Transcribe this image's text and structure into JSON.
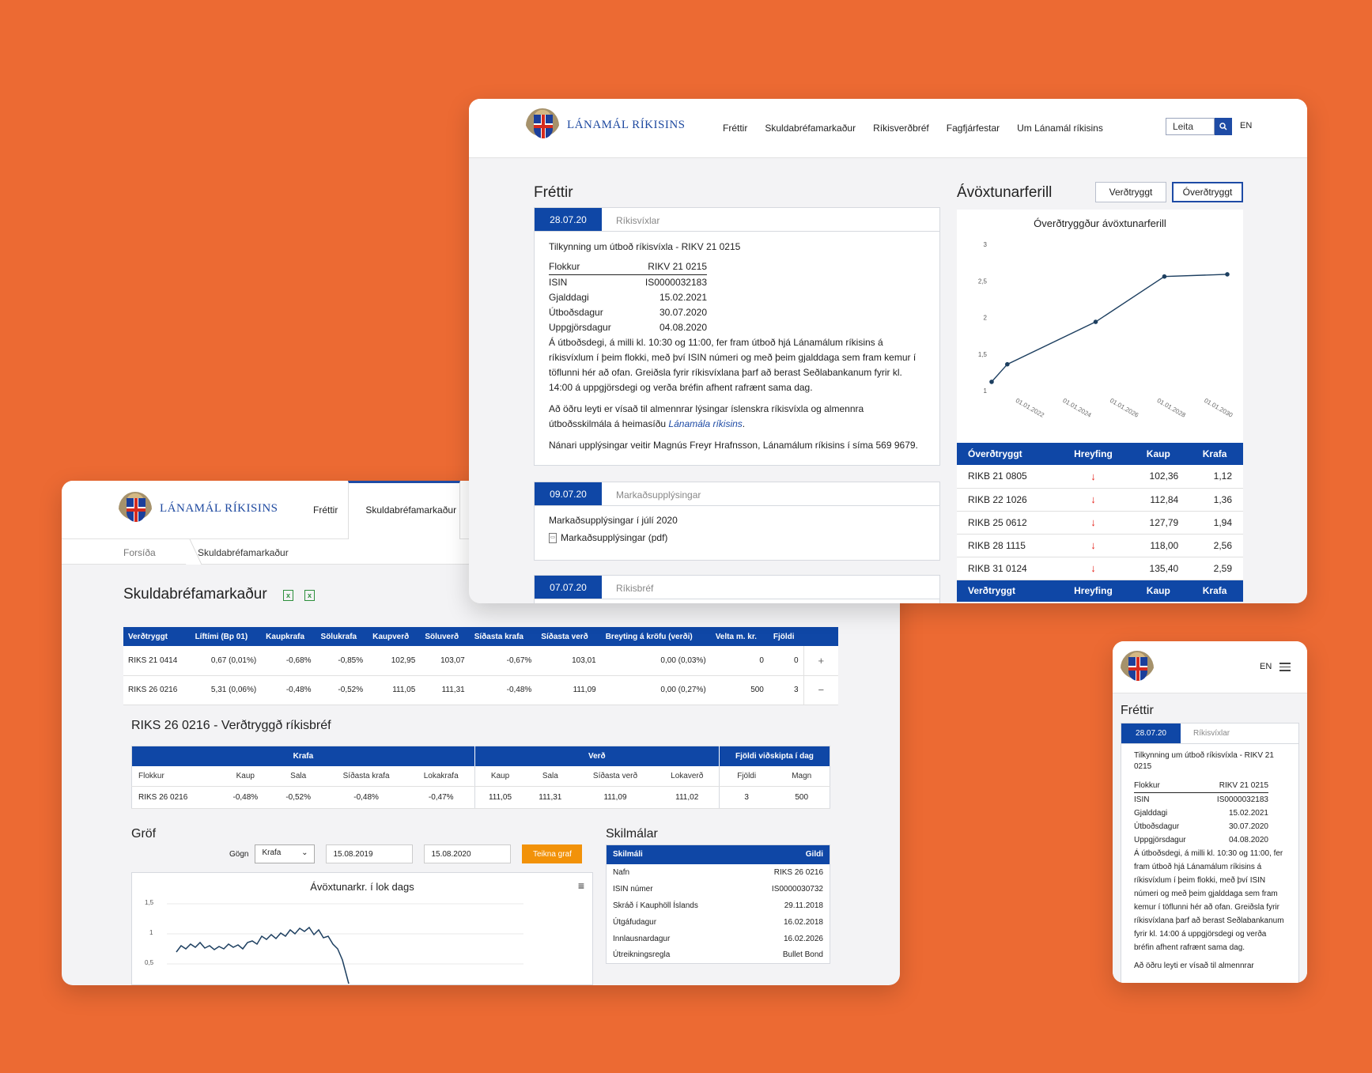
{
  "brand": {
    "name": "LÁNAMÁL RÍKISINS"
  },
  "main_window": {
    "nav": [
      "Fréttir",
      "Skuldabréfamarkaður",
      "Ríkisverðbréf",
      "Fagfjárfestar",
      "Um Lánamál ríkisins"
    ],
    "search_placeholder": "Leita",
    "lang": "EN",
    "news_title": "Fréttir",
    "news": [
      {
        "date": "28.07.20",
        "category": "Ríkisvíxlar",
        "title": "Tilkynning um útboð ríkisvíxla - RIKV 21 0215",
        "table": [
          [
            "Flokkur",
            "RIKV 21 0215"
          ],
          [
            "ISIN",
            "IS0000032183"
          ],
          [
            "Gjalddagi",
            "15.02.2021"
          ],
          [
            "Útboðsdagur",
            "30.07.2020"
          ],
          [
            "Uppgjörsdagur",
            "04.08.2020"
          ]
        ],
        "para1": "Á útboðsdegi, á milli kl. 10:30 og 11:00, fer fram útboð hjá Lánamálum ríkisins á ríkisvíxlum í þeim flokki, með því ISIN númeri og með þeim gjalddaga sem fram kemur í töflunni hér að ofan. Greiðsla fyrir ríkisvíxlana þarf að berast Seðlabankanum fyrir kl. 14:00 á uppgjörsdegi og verða bréfin afhent rafrænt sama dag.",
        "para2_a": "Að öðru leyti er vísað til almennrar lýsingar íslenskra ríkisvíxla og almennra útboðsskilmála á heimasíðu ",
        "para2_link": "Lánamála ríkisins",
        "para2_b": ".",
        "para3": "Nánari upplýsingar veitir Magnús Freyr Hrafnsson, Lánamálum ríkisins í síma 569 9679."
      },
      {
        "date": "09.07.20",
        "category": "Markaðsupplýsingar",
        "title": "Markaðsupplýsingar í júlí 2020",
        "attachment": "Markaðsupplýsingar (pdf)"
      },
      {
        "date": "07.07.20",
        "category": "Ríkisbréf"
      }
    ],
    "curve_title": "Ávöxtunarferill",
    "toggles": [
      "Verðtryggt",
      "Óverðtryggt"
    ],
    "active_toggle": "Óverðtryggt",
    "chart_data": {
      "type": "line",
      "title": "Óverðtryggður ávöxtunarferill",
      "x": [
        "01.01.2021",
        "01.09.2021",
        "01.06.2025",
        "01.05.2028",
        "01.01.2031"
      ],
      "x_ticks": [
        "01.01.2022",
        "01.01.2024",
        "01.01.2026",
        "01.01.2028",
        "01.01.2030"
      ],
      "y_ticks": [
        "1",
        "1,5",
        "2",
        "2,5",
        "3"
      ],
      "ylim": [
        1,
        3
      ],
      "values": [
        1.12,
        1.36,
        1.94,
        2.56,
        2.59
      ]
    },
    "rates_table": {
      "headers": [
        "Óverðtryggt",
        "Hreyfing",
        "Kaup",
        "Krafa"
      ],
      "rows": [
        [
          "RIKB 21 0805",
          "down",
          "102,36",
          "1,12"
        ],
        [
          "RIKB 22 1026",
          "down",
          "112,84",
          "1,36"
        ],
        [
          "RIKB 25 0612",
          "down",
          "127,79",
          "1,94"
        ],
        [
          "RIKB 28 1115",
          "down",
          "118,00",
          "2,56"
        ],
        [
          "RIKB 31 0124",
          "down",
          "135,40",
          "2,59"
        ]
      ],
      "footer_headers": [
        "Verðtryggt",
        "Hreyfing",
        "Kaup",
        "Krafa"
      ]
    }
  },
  "left_window": {
    "nav": [
      "Fréttir",
      "Skuldabréfamarkaður"
    ],
    "breadcrumb": [
      "Forsíða",
      "Skuldabréfamarkaður"
    ],
    "page_title": "Skuldabréfamarkaður",
    "market_table": {
      "headers": [
        "Verðtryggt",
        "Líftími (Bp 01)",
        "Kaupkrafa",
        "Sölukrafa",
        "Kaupverð",
        "Söluverð",
        "Síðasta krafa",
        "Síðasta verð",
        "Breyting á kröfu (verði)",
        "Velta m. kr.",
        "Fjöldi"
      ],
      "rows": [
        [
          "RIKS 21 0414",
          "0,67 (0,01%)",
          "-0,68%",
          "-0,85%",
          "102,95",
          "103,07",
          "-0,67%",
          "103,01",
          "0,00 (0,03%)",
          "0",
          "0",
          "+"
        ],
        [
          "RIKS 26 0216",
          "5,31 (0,06%)",
          "-0,48%",
          "-0,52%",
          "111,05",
          "111,31",
          "-0,48%",
          "111,09",
          "0,00 (0,27%)",
          "500",
          "3",
          "−"
        ]
      ]
    },
    "detail_title": "RIKS 26 0216 - Verðtryggð ríkisbréf",
    "detail_table": {
      "groups": [
        "Krafa",
        "Verð",
        "Fjöldi viðskipta í dag"
      ],
      "subheaders": [
        "Flokkur",
        "Kaup",
        "Sala",
        "Síðasta krafa",
        "Lokakrafa",
        "Kaup",
        "Sala",
        "Síðasta verð",
        "Lokaverð",
        "Fjöldi",
        "Magn"
      ],
      "row": [
        "RIKS 26 0216",
        "-0,48%",
        "-0,52%",
        "-0,48%",
        "-0,47%",
        "111,05",
        "111,31",
        "111,09",
        "111,02",
        "3",
        "500"
      ]
    },
    "graphs_title": "Gröf",
    "filter": {
      "label": "Gögn",
      "select_value": "Krafa",
      "date_from": "15.08.2019",
      "date_to": "15.08.2020",
      "button": "Teikna graf"
    },
    "graph_chart": {
      "title": "Ávöxtunarkr. í lok dags",
      "y_ticks": [
        "1,5",
        "1",
        "0,5"
      ]
    },
    "terms_title": "Skilmálar",
    "terms_table": {
      "headers": [
        "Skilmáli",
        "Gildi"
      ],
      "rows": [
        [
          "Nafn",
          "RIKS 26 0216"
        ],
        [
          "ISIN númer",
          "IS0000030732"
        ],
        [
          "Skráð í Kauphöll Íslands",
          "29.11.2018"
        ],
        [
          "Útgáfudagur",
          "16.02.2018"
        ],
        [
          "Innlausnardagur",
          "16.02.2026"
        ],
        [
          "Útreikningsregla",
          "Bullet Bond"
        ]
      ]
    }
  },
  "mobile_window": {
    "lang": "EN",
    "news_title": "Fréttir",
    "date": "28.07.20",
    "category": "Ríkisvíxlar",
    "title": "Tilkynning um útboð ríkisvíxla - RIKV 21 0215",
    "table": [
      [
        "Flokkur",
        "RIKV 21 0215"
      ],
      [
        "ISIN",
        "IS0000032183"
      ],
      [
        "Gjalddagi",
        "15.02.2021"
      ],
      [
        "Útboðsdagur",
        "30.07.2020"
      ],
      [
        "Uppgjörsdagur",
        "04.08.2020"
      ]
    ],
    "para1": "Á útboðsdegi, á milli kl. 10:30 og 11:00, fer fram útboð hjá Lánamálum ríkisins á ríkisvíxlum í þeim flokki, með því ISIN númeri og með þeim gjalddaga sem fram kemur í töflunni hér að ofan. Greiðsla fyrir ríkisvíxlana þarf að berast Seðlabankanum fyrir kl. 14:00 á uppgjörsdegi og verða bréfin afhent rafrænt sama dag.",
    "para2": "Að öðru leyti er vísað til almennrar"
  },
  "colors": {
    "background": "#ec6a33",
    "brand_blue": "#0f47a6",
    "accent_orange": "#f29209",
    "down_red": "#e5231b"
  }
}
